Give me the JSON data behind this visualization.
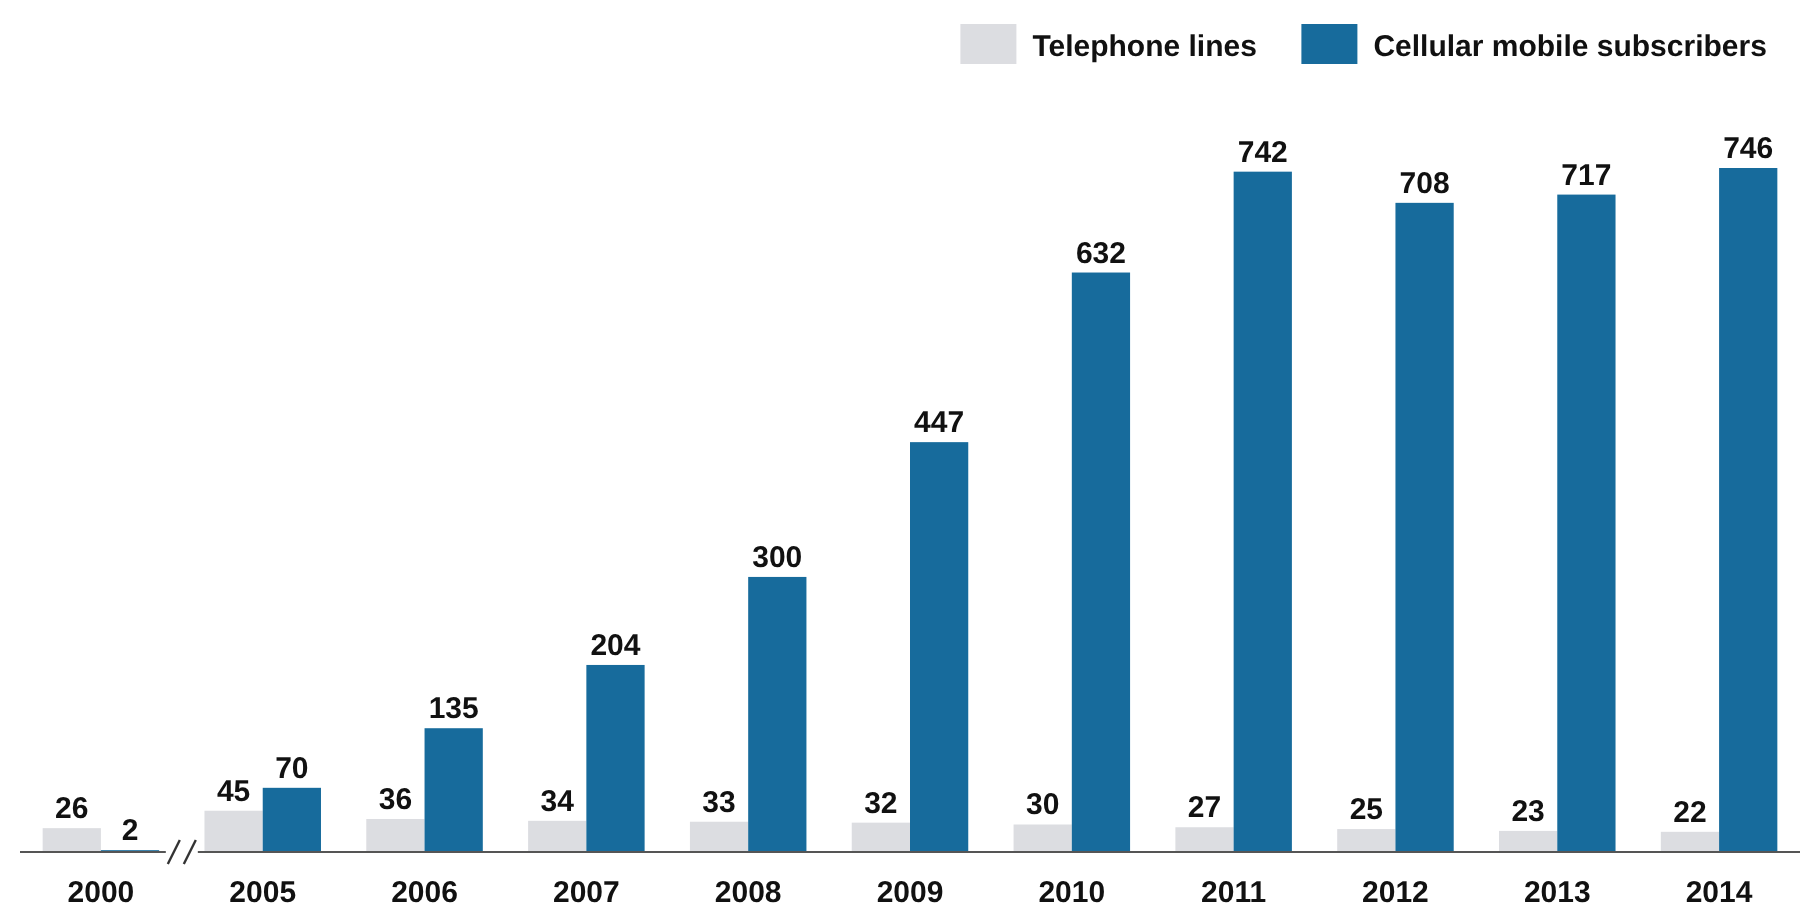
{
  "chart_data": {
    "type": "bar",
    "categories": [
      "2000",
      "2005",
      "2006",
      "2007",
      "2008",
      "2009",
      "2010",
      "2011",
      "2012",
      "2013",
      "2014"
    ],
    "series": [
      {
        "name": "Telephone lines",
        "color": "#dcdde1",
        "values": [
          26,
          45,
          36,
          34,
          33,
          32,
          30,
          27,
          25,
          23,
          22
        ]
      },
      {
        "name": "Cellular mobile subscribers",
        "color": "#176b9c",
        "values": [
          2,
          70,
          135,
          204,
          300,
          447,
          632,
          742,
          708,
          717,
          746
        ]
      }
    ],
    "data_labels": true,
    "legend": "top right"
  }
}
